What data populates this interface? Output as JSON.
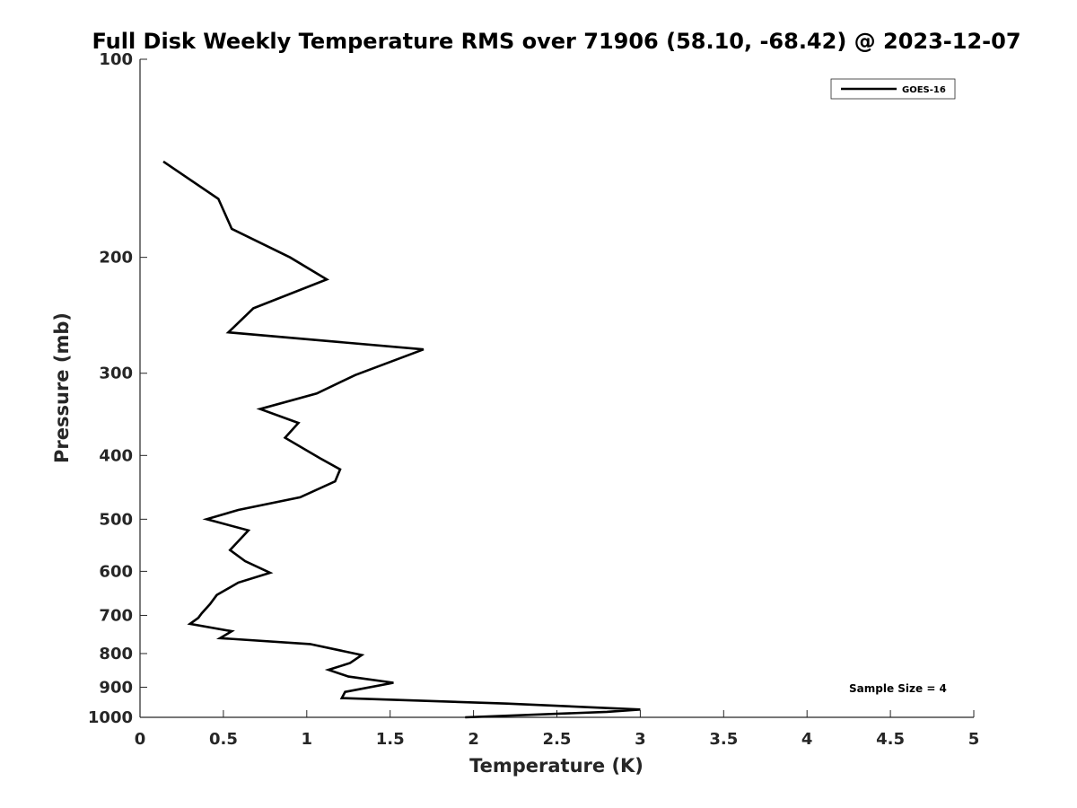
{
  "chart_data": {
    "type": "line",
    "title": "Full Disk Weekly Temperature RMS over 71906 (58.10, -68.42) @ 2023-12-07",
    "xlabel": "Temperature (K)",
    "ylabel": "Pressure (mb)",
    "xlim": [
      0,
      5
    ],
    "ylim": [
      100,
      1000
    ],
    "yscale": "log",
    "yreversed": true,
    "x_ticks": [
      0,
      0.5,
      1,
      1.5,
      2,
      2.5,
      3,
      3.5,
      4,
      4.5,
      5
    ],
    "x_tick_labels": [
      "0",
      "0.5",
      "1",
      "1.5",
      "2",
      "2.5",
      "3",
      "3.5",
      "4",
      "4.5",
      "5"
    ],
    "y_ticks": [
      100,
      200,
      300,
      400,
      500,
      600,
      700,
      800,
      900,
      1000
    ],
    "y_tick_labels": [
      "100",
      "200",
      "300",
      "400",
      "500",
      "600",
      "700",
      "800",
      "900",
      "1000"
    ],
    "grid": false,
    "legend_position": "top-right",
    "series": [
      {
        "name": "GOES-16",
        "color": "#000000",
        "x": [
          0.14,
          0.47,
          0.55,
          0.9,
          1.12,
          0.68,
          0.53,
          1.7,
          1.29,
          1.06,
          0.72,
          0.95,
          0.87,
          1.08,
          1.2,
          1.17,
          0.96,
          0.59,
          0.4,
          0.65,
          0.59,
          0.54,
          0.63,
          0.78,
          0.59,
          0.46,
          0.42,
          0.37,
          0.35,
          0.3,
          0.55,
          0.48,
          1.02,
          1.33,
          1.26,
          1.13,
          1.25,
          1.52,
          1.23,
          1.21,
          2.2,
          3.0,
          2.8,
          1.95
        ],
        "y": [
          143,
          163,
          181,
          200,
          216,
          239,
          260,
          276,
          302,
          322,
          340,
          357,
          376,
          404,
          420,
          438,
          463,
          484,
          500,
          520,
          540,
          557,
          579,
          603,
          624,
          652,
          673,
          695,
          706,
          721,
          740,
          758,
          774,
          804,
          827,
          847,
          867,
          886,
          915,
          935,
          953,
          973,
          981,
          1000
        ]
      }
    ],
    "annotation": "Sample Size = 4"
  }
}
